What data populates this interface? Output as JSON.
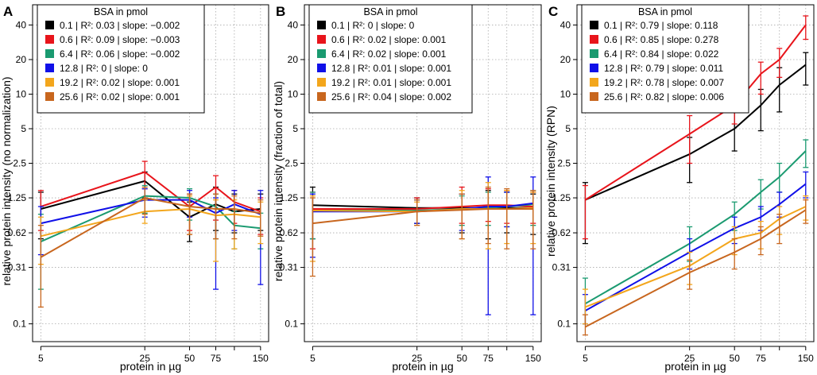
{
  "figure": {
    "panels": [
      {
        "letter": "A",
        "xlabel": "protein in µg",
        "ylabel": "relative protein intensity (no normalization)"
      },
      {
        "letter": "B",
        "xlabel": "protein in µg",
        "ylabel": "relative protein intensity (fraction of total)"
      },
      {
        "letter": "C",
        "xlabel": "protein in µg",
        "ylabel": "relative protein intensity (RPN)"
      }
    ]
  },
  "chart_data": [
    {
      "type": "line",
      "panel": "A",
      "title": "",
      "xlabel": "protein in µg",
      "ylabel": "relative protein intensity (no normalization)",
      "x_scale": "log",
      "y_scale": "log",
      "xlim": [
        4.4,
        170
      ],
      "ylim": [
        0.07,
        60
      ],
      "x_ticks": [
        5,
        25,
        50,
        75,
        150
      ],
      "x_tick_labels": [
        "5",
        "25",
        "50",
        "75",
        "150"
      ],
      "x_grid": [
        5,
        25,
        50,
        75,
        100,
        150
      ],
      "y_ticks": [
        0.1,
        0.31,
        0.62,
        1.25,
        2.5,
        5,
        10,
        20,
        40
      ],
      "y_tick_labels": [
        "0.1",
        "0.31",
        "0.62",
        "1.25",
        "2.5",
        "5",
        "10",
        "20",
        "40"
      ],
      "grid": true,
      "legend_title": "BSA in pmol",
      "legend_position": "top-left",
      "x": [
        5,
        25,
        50,
        75,
        100,
        150
      ],
      "series": [
        {
          "name": "0.1 | R²: 0.03 | slope: −0.002",
          "color": "#000000",
          "values": [
            1.0,
            1.75,
            0.85,
            1.1,
            0.95,
            1.0
          ],
          "low": [
            0.55,
            1.25,
            0.52,
            0.65,
            0.62,
            0.65
          ],
          "high": [
            1.4,
            2.1,
            1.15,
            1.55,
            1.35,
            1.35
          ]
        },
        {
          "name": "0.6 | R²: 0.09 | slope: −0.003",
          "color": "#e8141b",
          "values": [
            1.05,
            2.1,
            1.05,
            1.55,
            1.15,
            0.95
          ],
          "low": [
            0.65,
            1.5,
            0.65,
            0.8,
            0.75,
            0.6
          ],
          "high": [
            1.45,
            2.6,
            1.35,
            1.95,
            1.45,
            1.25
          ]
        },
        {
          "name": "6.4 | R²: 0.06 | slope: −0.002",
          "color": "#1a9a70",
          "values": [
            0.52,
            1.3,
            1.25,
            1.05,
            0.72,
            0.68
          ],
          "low": [
            0.2,
            0.92,
            0.8,
            0.55,
            0.45,
            0.45
          ],
          "high": [
            0.9,
            1.6,
            1.5,
            1.35,
            0.95,
            0.92
          ]
        },
        {
          "name": "12.8 | R²: 0 | slope: 0",
          "color": "#1010e8",
          "values": [
            0.75,
            1.2,
            1.2,
            0.92,
            1.1,
            0.9
          ],
          "low": [
            0.4,
            0.85,
            0.85,
            0.2,
            0.65,
            0.22
          ],
          "high": [
            1.05,
            1.5,
            1.45,
            1.25,
            1.45,
            1.45
          ]
        },
        {
          "name": "19.2 | R²: 0.02 | slope: 0.001",
          "color": "#f3a61c",
          "values": [
            0.58,
            0.95,
            1.0,
            0.88,
            0.9,
            0.85
          ],
          "low": [
            0.33,
            0.75,
            0.6,
            0.35,
            0.45,
            0.5
          ],
          "high": [
            0.85,
            1.2,
            1.3,
            1.2,
            1.2,
            1.15
          ]
        },
        {
          "name": "25.6 | R²: 0.02 | slope: 0.001",
          "color": "#c8661e",
          "values": [
            0.38,
            1.25,
            1.05,
            1.0,
            1.0,
            0.92
          ],
          "low": [
            0.14,
            0.9,
            0.6,
            0.55,
            0.55,
            0.58
          ],
          "high": [
            0.72,
            1.55,
            1.35,
            1.35,
            1.3,
            1.2
          ]
        }
      ]
    },
    {
      "type": "line",
      "panel": "B",
      "title": "",
      "xlabel": "protein in µg",
      "ylabel": "relative protein intensity (fraction of total)",
      "x_scale": "log",
      "y_scale": "log",
      "xlim": [
        4.4,
        170
      ],
      "ylim": [
        0.07,
        60
      ],
      "x_ticks": [
        5,
        25,
        50,
        75,
        150
      ],
      "x_tick_labels": [
        "5",
        "25",
        "50",
        "75",
        "150"
      ],
      "x_grid": [
        5,
        25,
        50,
        75,
        100,
        150
      ],
      "y_ticks": [
        0.1,
        0.31,
        0.62,
        1.25,
        2.5,
        5,
        10,
        20,
        40
      ],
      "y_tick_labels": [
        "0.1",
        "0.31",
        "0.62",
        "1.25",
        "2.5",
        "5",
        "10",
        "20",
        "40"
      ],
      "grid": true,
      "legend_title": "BSA in pmol",
      "legend_position": "top-left",
      "x": [
        5,
        25,
        50,
        75,
        100,
        150
      ],
      "series": [
        {
          "name": "0.1 | R²: 0 | slope: 0",
          "color": "#000000",
          "values": [
            1.08,
            1.02,
            1.02,
            1.02,
            1.02,
            1.02
          ],
          "low": [
            0.55,
            0.75,
            0.62,
            0.55,
            0.62,
            0.6
          ],
          "high": [
            1.55,
            1.25,
            1.35,
            1.45,
            1.4,
            1.35
          ]
        },
        {
          "name": "0.6 | R²: 0.02 | slope: 0.001",
          "color": "#e8141b",
          "values": [
            1.0,
            1.0,
            1.05,
            1.08,
            1.08,
            1.05
          ],
          "low": [
            0.45,
            0.75,
            0.75,
            0.78,
            0.75,
            0.75
          ],
          "high": [
            1.4,
            1.25,
            1.55,
            1.5,
            1.45,
            1.4
          ]
        },
        {
          "name": "6.4 | R²: 0.02 | slope: 0.001",
          "color": "#1a9a70",
          "values": [
            0.97,
            0.97,
            1.0,
            1.02,
            1.05,
            1.1
          ],
          "low": [
            0.55,
            0.75,
            0.72,
            0.72,
            0.7,
            0.72
          ],
          "high": [
            1.4,
            1.2,
            1.3,
            1.4,
            1.4,
            1.45
          ]
        },
        {
          "name": "12.8 | R²: 0.01 | slope: 0.001",
          "color": "#1010e8",
          "values": [
            0.95,
            0.95,
            1.0,
            1.05,
            1.05,
            1.12
          ],
          "low": [
            0.38,
            0.75,
            0.65,
            0.12,
            0.7,
            0.12
          ],
          "high": [
            1.35,
            1.2,
            1.35,
            1.9,
            1.4,
            1.9
          ]
        },
        {
          "name": "19.2 | R²: 0.01 | slope: 0.001",
          "color": "#f3a61c",
          "values": [
            0.97,
            0.95,
            1.0,
            1.0,
            1.0,
            1.02
          ],
          "low": [
            0.35,
            0.72,
            0.55,
            0.45,
            0.5,
            0.5
          ],
          "high": [
            1.3,
            1.15,
            1.45,
            1.7,
            1.45,
            1.4
          ]
        },
        {
          "name": "25.6 | R²: 0.04 | slope: 0.002",
          "color": "#c8661e",
          "values": [
            0.75,
            0.95,
            0.98,
            1.0,
            1.0,
            1.0
          ],
          "low": [
            0.26,
            0.72,
            0.55,
            0.5,
            0.45,
            0.45
          ],
          "high": [
            1.25,
            1.2,
            1.35,
            1.55,
            1.5,
            1.45
          ]
        }
      ]
    },
    {
      "type": "line",
      "panel": "C",
      "title": "",
      "xlabel": "protein in µg",
      "ylabel": "relative protein intensity (RPN)",
      "x_scale": "log",
      "y_scale": "log",
      "xlim": [
        4.4,
        170
      ],
      "ylim": [
        0.07,
        60
      ],
      "x_ticks": [
        5,
        25,
        50,
        75,
        150
      ],
      "x_tick_labels": [
        "5",
        "25",
        "50",
        "75",
        "150"
      ],
      "x_grid": [
        5,
        25,
        50,
        75,
        100,
        150
      ],
      "y_ticks": [
        0.1,
        0.31,
        0.62,
        1.25,
        2.5,
        5,
        10,
        20,
        40
      ],
      "y_tick_labels": [
        "0.1",
        "0.31",
        "0.62",
        "1.25",
        "2.5",
        "5",
        "10",
        "20",
        "40"
      ],
      "grid": true,
      "legend_title": "BSA in pmol",
      "legend_position": "top-left",
      "x": [
        5,
        25,
        50,
        75,
        100,
        150
      ],
      "series": [
        {
          "name": "0.1 | R²: 0.79 | slope: 0.118",
          "color": "#000000",
          "values": [
            1.2,
            3.0,
            5.0,
            8.0,
            12.0,
            18.0
          ],
          "low": [
            0.5,
            1.7,
            3.2,
            4.8,
            7.0,
            12.0
          ],
          "high": [
            1.7,
            4.2,
            7.0,
            11.0,
            17.0,
            23.0
          ]
        },
        {
          "name": "0.6 | R²: 0.85 | slope: 0.278",
          "color": "#e8141b",
          "values": [
            1.2,
            4.5,
            8.0,
            15.0,
            20.0,
            40.0
          ],
          "low": [
            0.55,
            2.5,
            5.5,
            10.0,
            14.0,
            30.0
          ],
          "high": [
            1.6,
            6.5,
            10.0,
            19.0,
            25.0,
            48.0
          ]
        },
        {
          "name": "6.4 | R²: 0.84 | slope: 0.022",
          "color": "#1a9a70",
          "values": [
            0.15,
            0.5,
            0.9,
            1.4,
            1.9,
            3.2
          ],
          "low": [
            0.1,
            0.35,
            0.65,
            1.0,
            1.4,
            2.3
          ],
          "high": [
            0.25,
            0.7,
            1.15,
            1.8,
            2.5,
            4.0
          ]
        },
        {
          "name": "12.8 | R²: 0.79 | slope: 0.011",
          "color": "#1010e8",
          "values": [
            0.13,
            0.42,
            0.68,
            0.85,
            1.1,
            1.65
          ],
          "low": [
            0.1,
            0.3,
            0.5,
            0.65,
            0.85,
            1.25
          ],
          "high": [
            0.18,
            0.55,
            0.85,
            1.05,
            1.4,
            2.1
          ]
        },
        {
          "name": "19.2 | R²: 0.78 | slope: 0.007",
          "color": "#f3a61c",
          "values": [
            0.14,
            0.32,
            0.55,
            0.62,
            0.82,
            1.05
          ],
          "low": [
            0.1,
            0.22,
            0.4,
            0.45,
            0.6,
            0.8
          ],
          "high": [
            0.2,
            0.42,
            0.7,
            0.78,
            1.05,
            1.3
          ]
        },
        {
          "name": "25.6 | R²: 0.82 | slope: 0.006",
          "color": "#c8661e",
          "values": [
            0.094,
            0.28,
            0.42,
            0.55,
            0.7,
            0.98
          ],
          "low": [
            0.08,
            0.2,
            0.3,
            0.4,
            0.5,
            0.75
          ],
          "high": [
            0.12,
            0.36,
            0.55,
            0.7,
            0.9,
            1.2
          ]
        }
      ]
    }
  ]
}
